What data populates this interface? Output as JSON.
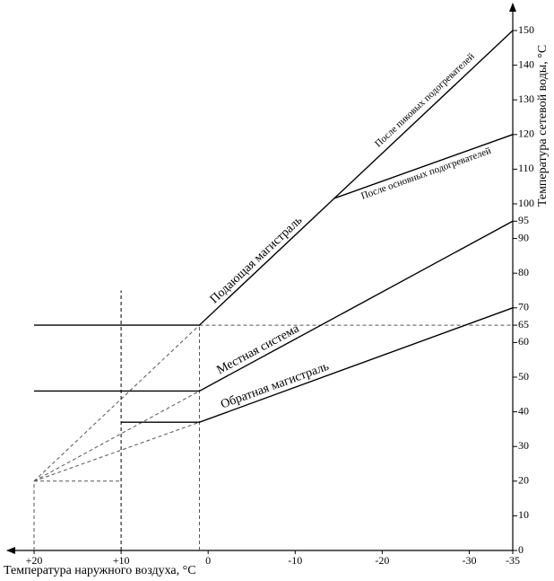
{
  "chart_data": {
    "type": "line",
    "x_label": "Температура наружного воздуха, °С",
    "y_label": "Температура сетевой воды, °С",
    "xlim": [
      20,
      -35
    ],
    "ylim": [
      0,
      150
    ],
    "xticks": [
      {
        "value": 20,
        "label": "+20"
      },
      {
        "value": 10,
        "label": "+10"
      },
      0,
      -10,
      -20,
      -30,
      -35
    ],
    "yticks": [
      0,
      10,
      20,
      30,
      40,
      50,
      60,
      65,
      70,
      80,
      90,
      95,
      100,
      110,
      120,
      130,
      140,
      150
    ],
    "series": [
      {
        "name": "Подающая магистраль",
        "color": "#000000",
        "x": [
          20,
          1,
          -35
        ],
        "values": [
          65,
          65,
          150
        ]
      },
      {
        "name": "После основных подогревателей",
        "color": "#000000",
        "x": [
          -14.5,
          -35
        ],
        "values": [
          101.6,
          120
        ]
      },
      {
        "name": "Местная система",
        "color": "#000000",
        "x": [
          20,
          1,
          -35
        ],
        "values": [
          46,
          46,
          95
        ]
      },
      {
        "name": "Обратная магистраль",
        "color": "#000000",
        "x": [
          10,
          1,
          -35
        ],
        "values": [
          37,
          37,
          70
        ]
      }
    ],
    "annotations": [
      "После пиковых подогревателей"
    ],
    "guides": [
      {
        "color": "#555555",
        "x": [
          20,
          1
        ],
        "values": [
          20,
          65
        ]
      },
      {
        "color": "#555555",
        "x": [
          20,
          1
        ],
        "values": [
          20,
          46
        ]
      },
      {
        "color": "#555555",
        "x": [
          20,
          1
        ],
        "values": [
          20,
          37
        ]
      },
      {
        "color": "#555555",
        "x": [
          20,
          10
        ],
        "values": [
          20,
          20
        ]
      },
      {
        "color": "#555555",
        "x": [
          20,
          20
        ],
        "values": [
          0,
          20
        ]
      },
      {
        "color": "#555555",
        "x": [
          1,
          -35
        ],
        "values": [
          65,
          65
        ]
      },
      {
        "color": "#555555",
        "x": [
          1,
          1
        ],
        "values": [
          0,
          65
        ]
      },
      {
        "color": "#000000",
        "x": [
          10,
          10
        ],
        "values": [
          0,
          75
        ]
      }
    ]
  }
}
